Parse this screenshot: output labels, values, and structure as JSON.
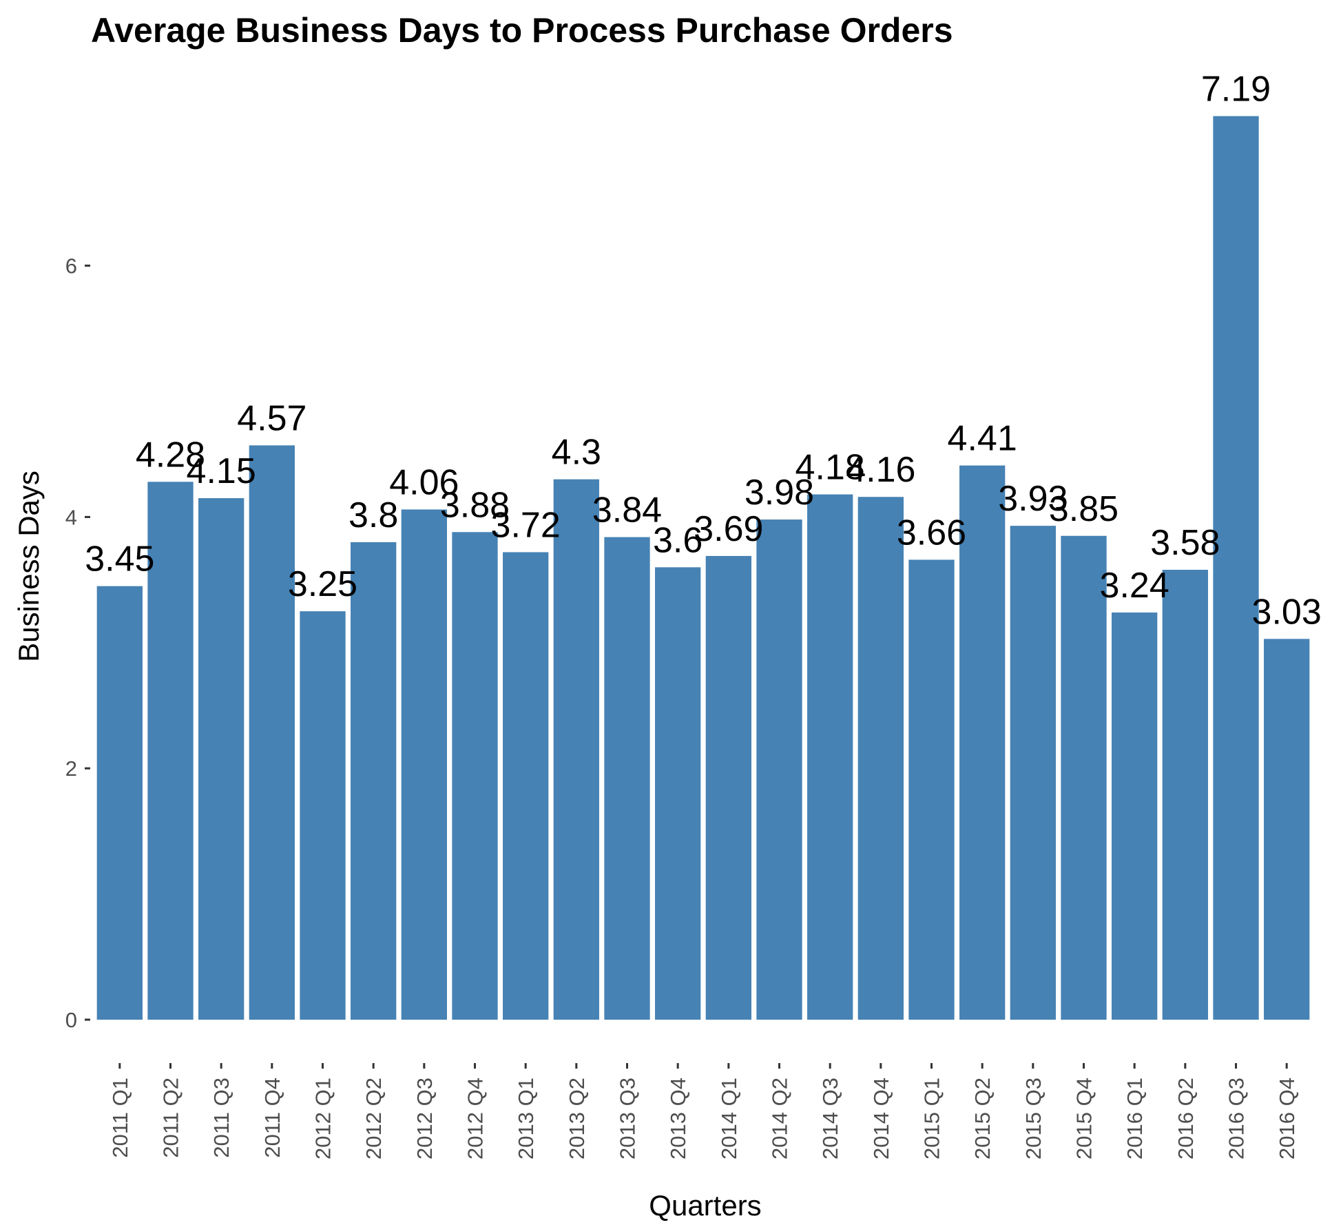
{
  "chart_data": {
    "type": "bar",
    "title": "Average Business Days to Process Purchase Orders",
    "xlabel": "Quarters",
    "ylabel": "Business Days",
    "categories": [
      "2011 Q1",
      "2011 Q2",
      "2011 Q3",
      "2011 Q4",
      "2012 Q1",
      "2012 Q2",
      "2012 Q3",
      "2012 Q4",
      "2013 Q1",
      "2013 Q2",
      "2013 Q3",
      "2013 Q4",
      "2014 Q1",
      "2014 Q2",
      "2014 Q3",
      "2014 Q4",
      "2015 Q1",
      "2015 Q2",
      "2015 Q3",
      "2015 Q4",
      "2016 Q1",
      "2016 Q2",
      "2016 Q3",
      "2016 Q4"
    ],
    "values": [
      3.45,
      4.28,
      4.15,
      4.57,
      3.25,
      3.8,
      4.06,
      3.88,
      3.72,
      4.3,
      3.84,
      3.6,
      3.69,
      3.98,
      4.18,
      4.16,
      3.66,
      4.41,
      3.93,
      3.85,
      3.24,
      3.58,
      7.19,
      3.03
    ],
    "value_labels": [
      "3.45",
      "4.28",
      "4.15",
      "4.57",
      "3.25",
      "3.8",
      "4.06",
      "3.88",
      "3.72",
      "4.3",
      "3.84",
      "3.6",
      "3.69",
      "3.98",
      "4.18",
      "4.16",
      "3.66",
      "4.41",
      "3.93",
      "3.85",
      "3.24",
      "3.58",
      "7.19",
      "3.03"
    ],
    "ylim": [
      0,
      7.19
    ],
    "yticks": [
      0,
      2,
      4,
      6
    ],
    "bar_color": "#4682b4",
    "grid": false,
    "legend": "none"
  }
}
